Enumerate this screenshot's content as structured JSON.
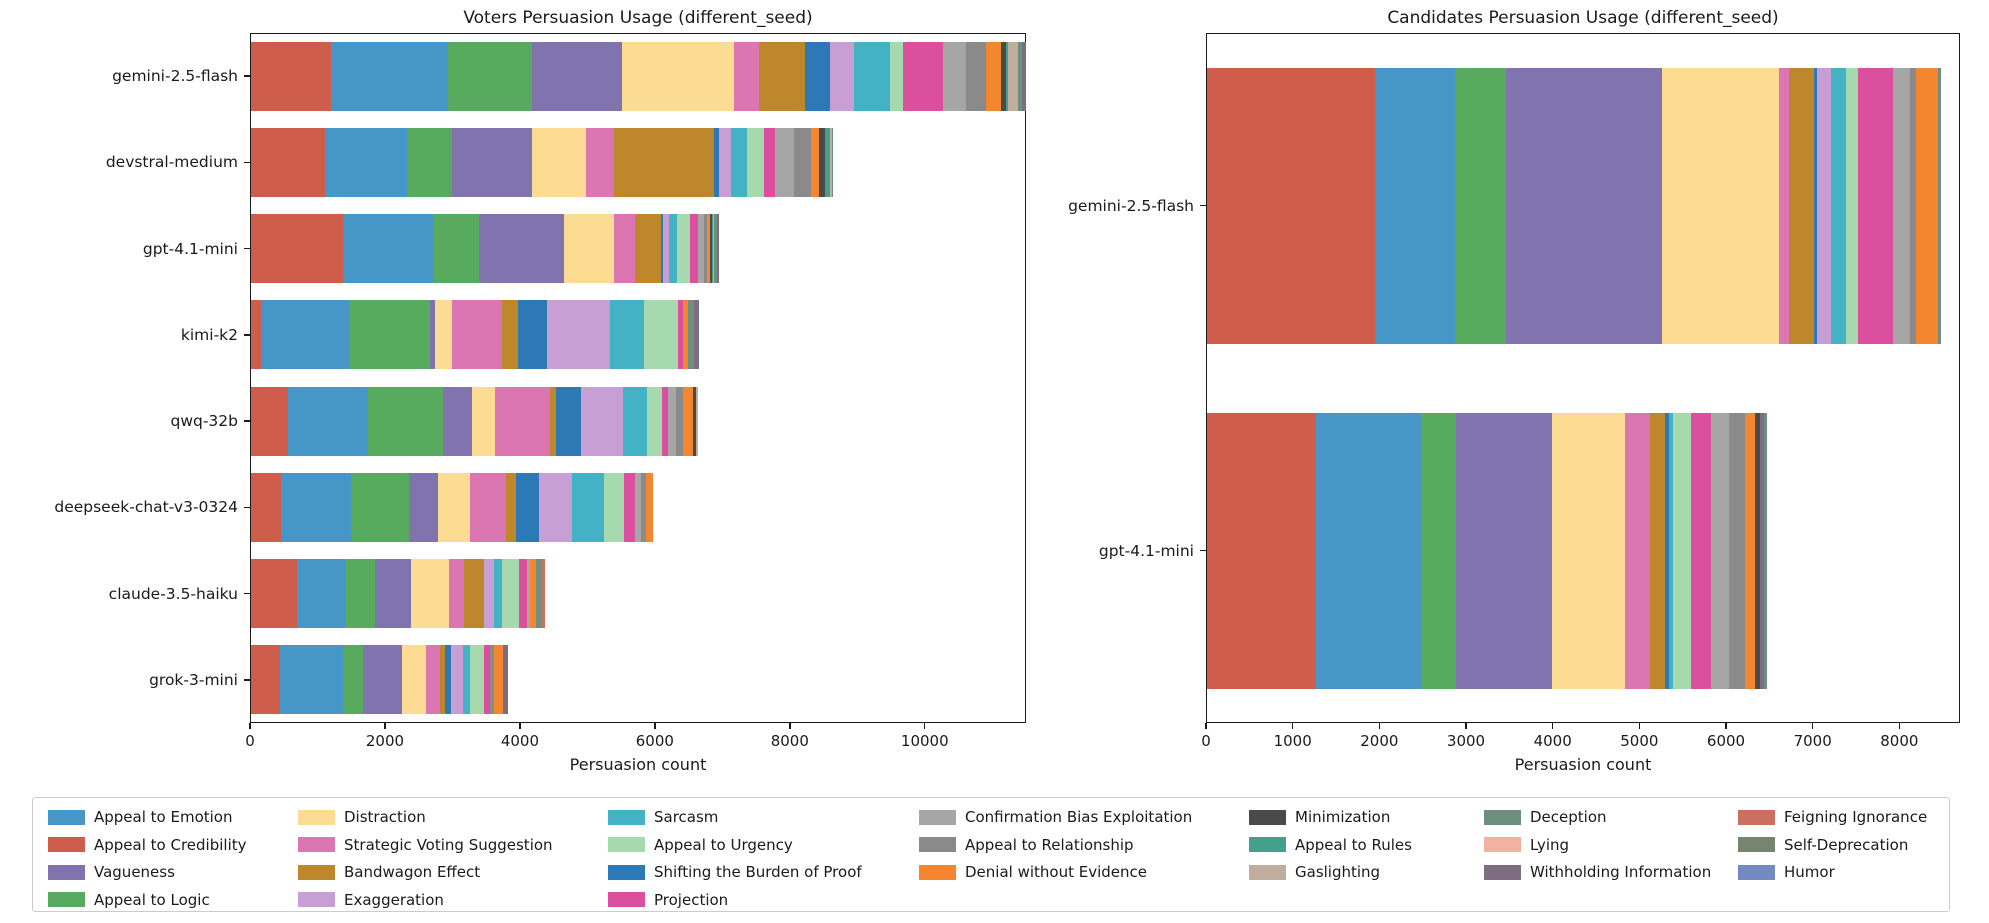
{
  "figure": {
    "background": "#ffffff",
    "text_color": "#1a1a1a"
  },
  "palette": {
    "Appeal to Emotion": "#4796C8",
    "Appeal to Credibility": "#CF5D4C",
    "Vagueness": "#8173AE",
    "Appeal to Logic": "#58AA5F",
    "Distraction": "#FBDC92",
    "Strategic Voting Suggestion": "#DC76B2",
    "Bandwagon Effect": "#BE872B",
    "Exaggeration": "#C89FD4",
    "Sarcasm": "#43B2C4",
    "Appeal to Urgency": "#A6DAAE",
    "Shifting the Burden of Proof": "#2C79B5",
    "Projection": "#DC4F9F",
    "Confirmation Bias Exploitation": "#A6A6A6",
    "Appeal to Relationship": "#8A8A8A",
    "Denial without Evidence": "#F4862F",
    "Minimization": "#4A4A48",
    "Appeal to Rules": "#42A08D",
    "Gaslighting": "#BFAD9D",
    "Deception": "#6E8F7F",
    "Lying": "#F2B2A2",
    "Withholding Information": "#7E6D80",
    "Feigning Ignorance": "#C97061",
    "Self-Deprecation": "#768570",
    "Humor": "#7289C1"
  },
  "chart_data": [
    {
      "type": "bar",
      "orientation": "horizontal",
      "stacked": true,
      "title": "Voters Persuasion Usage (different_seed)",
      "xlabel": "Persuasion count",
      "xlim": [
        0,
        11500
      ],
      "xticks": [
        0,
        2000,
        4000,
        6000,
        8000,
        10000
      ],
      "categories": [
        "gemini-2.5-flash",
        "devstral-medium",
        "gpt-4.1-mini",
        "kimi-k2",
        "qwq-32b",
        "deepseek-chat-v3-0324",
        "claude-3.5-haiku",
        "grok-3-mini"
      ],
      "bars": [
        {
          "label": "gemini-2.5-flash",
          "segments": [
            [
              "Appeal to Credibility",
              1180
            ],
            [
              "Appeal to Emotion",
              1730
            ],
            [
              "Appeal to Logic",
              1250
            ],
            [
              "Vagueness",
              1330
            ],
            [
              "Distraction",
              1660
            ],
            [
              "Strategic Voting Suggestion",
              380
            ],
            [
              "Bandwagon Effect",
              670
            ],
            [
              "Shifting the Burden of Proof",
              380
            ],
            [
              "Exaggeration",
              350
            ],
            [
              "Sarcasm",
              540
            ],
            [
              "Appeal to Urgency",
              185
            ],
            [
              "Projection",
              600
            ],
            [
              "Confirmation Bias Exploitation",
              330
            ],
            [
              "Appeal to Relationship",
              300
            ],
            [
              "Denial without Evidence",
              220
            ],
            [
              "Minimization",
              75
            ],
            [
              "Appeal to Rules",
              30
            ],
            [
              "Gaslighting",
              150
            ],
            [
              "Deception",
              60
            ],
            [
              "Withholding Information",
              60
            ]
          ]
        },
        {
          "label": "devstral-medium",
          "segments": [
            [
              "Appeal to Credibility",
              1090
            ],
            [
              "Appeal to Emotion",
              1215
            ],
            [
              "Appeal to Logic",
              665
            ],
            [
              "Vagueness",
              1195
            ],
            [
              "Distraction",
              790
            ],
            [
              "Strategic Voting Suggestion",
              415
            ],
            [
              "Bandwagon Effect",
              1490
            ],
            [
              "Shifting the Burden of Proof",
              75
            ],
            [
              "Exaggeration",
              170
            ],
            [
              "Sarcasm",
              235
            ],
            [
              "Appeal to Urgency",
              260
            ],
            [
              "Projection",
              160
            ],
            [
              "Confirmation Bias Exploitation",
              280
            ],
            [
              "Appeal to Relationship",
              260
            ],
            [
              "Denial without Evidence",
              110
            ],
            [
              "Minimization",
              90
            ],
            [
              "Appeal to Rules",
              80
            ],
            [
              "Gaslighting",
              20
            ],
            [
              "Deception",
              20
            ]
          ]
        },
        {
          "label": "gpt-4.1-mini",
          "segments": [
            [
              "Appeal to Credibility",
              1360
            ],
            [
              "Appeal to Emotion",
              1330
            ],
            [
              "Appeal to Logic",
              690
            ],
            [
              "Vagueness",
              1250
            ],
            [
              "Distraction",
              740
            ],
            [
              "Strategic Voting Suggestion",
              310
            ],
            [
              "Bandwagon Effect",
              390
            ],
            [
              "Shifting the Burden of Proof",
              30
            ],
            [
              "Exaggeration",
              90
            ],
            [
              "Sarcasm",
              125
            ],
            [
              "Appeal to Urgency",
              185
            ],
            [
              "Projection",
              125
            ],
            [
              "Confirmation Bias Exploitation",
              80
            ],
            [
              "Appeal to Relationship",
              55
            ],
            [
              "Denial without Evidence",
              40
            ],
            [
              "Minimization",
              25
            ],
            [
              "Appeal to Rules",
              20
            ],
            [
              "Gaslighting",
              15
            ],
            [
              "Deception",
              40
            ],
            [
              "Withholding Information",
              30
            ]
          ]
        },
        {
          "label": "kimi-k2",
          "segments": [
            [
              "Appeal to Credibility",
              135
            ],
            [
              "Appeal to Emotion",
              1305
            ],
            [
              "Appeal to Logic",
              1200
            ],
            [
              "Vagueness",
              75
            ],
            [
              "Distraction",
              260
            ],
            [
              "Strategic Voting Suggestion",
              735
            ],
            [
              "Bandwagon Effect",
              235
            ],
            [
              "Shifting the Burden of Proof",
              430
            ],
            [
              "Exaggeration",
              935
            ],
            [
              "Sarcasm",
              515
            ],
            [
              "Appeal to Urgency",
              500
            ],
            [
              "Projection",
              75
            ],
            [
              "Denial without Evidence",
              75
            ],
            [
              "Deception",
              90
            ],
            [
              "Withholding Information",
              75
            ]
          ]
        },
        {
          "label": "qwq-32b",
          "segments": [
            [
              "Appeal to Credibility",
              540
            ],
            [
              "Appeal to Emotion",
              1195
            ],
            [
              "Appeal to Logic",
              1105
            ],
            [
              "Vagueness",
              425
            ],
            [
              "Distraction",
              345
            ],
            [
              "Strategic Voting Suggestion",
              810
            ],
            [
              "Bandwagon Effect",
              90
            ],
            [
              "Shifting the Burden of Proof",
              370
            ],
            [
              "Exaggeration",
              635
            ],
            [
              "Sarcasm",
              345
            ],
            [
              "Appeal to Urgency",
              220
            ],
            [
              "Projection",
              95
            ],
            [
              "Confirmation Bias Exploitation",
              120
            ],
            [
              "Appeal to Relationship",
              100
            ],
            [
              "Denial without Evidence",
              145
            ],
            [
              "Minimization",
              50
            ],
            [
              "Gaslighting",
              35
            ]
          ]
        },
        {
          "label": "deepseek-chat-v3-0324",
          "segments": [
            [
              "Appeal to Credibility",
              440
            ],
            [
              "Appeal to Emotion",
              1030
            ],
            [
              "Appeal to Logic",
              870
            ],
            [
              "Vagueness",
              420
            ],
            [
              "Distraction",
              480
            ],
            [
              "Strategic Voting Suggestion",
              530
            ],
            [
              "Bandwagon Effect",
              145
            ],
            [
              "Shifting the Burden of Proof",
              355
            ],
            [
              "Exaggeration",
              480
            ],
            [
              "Sarcasm",
              480
            ],
            [
              "Appeal to Urgency",
              295
            ],
            [
              "Projection",
              160
            ],
            [
              "Confirmation Bias Exploitation",
              95
            ],
            [
              "Appeal to Relationship",
              75
            ],
            [
              "Denial without Evidence",
              95
            ]
          ]
        },
        {
          "label": "claude-3.5-haiku",
          "segments": [
            [
              "Appeal to Credibility",
              680
            ],
            [
              "Appeal to Emotion",
              720
            ],
            [
              "Appeal to Logic",
              425
            ],
            [
              "Vagueness",
              545
            ],
            [
              "Distraction",
              560
            ],
            [
              "Strategic Voting Suggestion",
              220
            ],
            [
              "Bandwagon Effect",
              295
            ],
            [
              "Exaggeration",
              145
            ],
            [
              "Sarcasm",
              125
            ],
            [
              "Appeal to Urgency",
              245
            ],
            [
              "Projection",
              125
            ],
            [
              "Confirmation Bias Exploitation",
              50
            ],
            [
              "Denial without Evidence",
              90
            ],
            [
              "Deception",
              75
            ],
            [
              "Feigning Ignorance",
              60
            ]
          ]
        },
        {
          "label": "grok-3-mini",
          "segments": [
            [
              "Appeal to Credibility",
              430
            ],
            [
              "Appeal to Emotion",
              935
            ],
            [
              "Appeal to Logic",
              295
            ],
            [
              "Vagueness",
              565
            ],
            [
              "Distraction",
              370
            ],
            [
              "Strategic Voting Suggestion",
              205
            ],
            [
              "Bandwagon Effect",
              75
            ],
            [
              "Shifting the Burden of Proof",
              90
            ],
            [
              "Exaggeration",
              170
            ],
            [
              "Sarcasm",
              110
            ],
            [
              "Appeal to Urgency",
              205
            ],
            [
              "Projection",
              90
            ],
            [
              "Appeal to Relationship",
              60
            ],
            [
              "Denial without Evidence",
              125
            ],
            [
              "Withholding Information",
              75
            ]
          ]
        }
      ]
    },
    {
      "type": "bar",
      "orientation": "horizontal",
      "stacked": true,
      "title": "Candidates Persuasion Usage (different_seed)",
      "xlabel": "Persuasion count",
      "xlim": [
        0,
        8700
      ],
      "xticks": [
        0,
        1000,
        2000,
        3000,
        4000,
        5000,
        6000,
        7000,
        8000
      ],
      "categories": [
        "gemini-2.5-flash",
        "gpt-4.1-mini"
      ],
      "bars": [
        {
          "label": "gemini-2.5-flash",
          "segments": [
            [
              "Appeal to Credibility",
              1930
            ],
            [
              "Appeal to Emotion",
              925
            ],
            [
              "Appeal to Logic",
              595
            ],
            [
              "Vagueness",
              1795
            ],
            [
              "Distraction",
              1345
            ],
            [
              "Strategic Voting Suggestion",
              125
            ],
            [
              "Bandwagon Effect",
              290
            ],
            [
              "Shifting the Burden of Proof",
              35
            ],
            [
              "Exaggeration",
              155
            ],
            [
              "Sarcasm",
              175
            ],
            [
              "Appeal to Urgency",
              140
            ],
            [
              "Projection",
              405
            ],
            [
              "Confirmation Bias Exploitation",
              190
            ],
            [
              "Appeal to Relationship",
              75
            ],
            [
              "Denial without Evidence",
              255
            ],
            [
              "Deception",
              30
            ]
          ]
        },
        {
          "label": "gpt-4.1-mini",
          "segments": [
            [
              "Appeal to Credibility",
              1250
            ],
            [
              "Appeal to Emotion",
              1210
            ],
            [
              "Appeal to Logic",
              410
            ],
            [
              "Vagueness",
              1110
            ],
            [
              "Distraction",
              840
            ],
            [
              "Strategic Voting Suggestion",
              290
            ],
            [
              "Bandwagon Effect",
              175
            ],
            [
              "Shifting the Burden of Proof",
              40
            ],
            [
              "Sarcasm",
              45
            ],
            [
              "Appeal to Urgency",
              215
            ],
            [
              "Projection",
              230
            ],
            [
              "Confirmation Bias Exploitation",
              200
            ],
            [
              "Appeal to Relationship",
              195
            ],
            [
              "Denial without Evidence",
              115
            ],
            [
              "Minimization",
              50
            ],
            [
              "Withholding Information",
              50
            ],
            [
              "Deception",
              35
            ]
          ]
        }
      ]
    }
  ],
  "legend": {
    "columns": [
      [
        "Appeal to Emotion",
        "Appeal to Credibility",
        "Vagueness",
        "Appeal to Logic"
      ],
      [
        "Distraction",
        "Strategic Voting Suggestion",
        "Bandwagon Effect",
        "Exaggeration"
      ],
      [
        "Sarcasm",
        "Appeal to Urgency",
        "Shifting the Burden of Proof",
        "Projection"
      ],
      [
        "Confirmation Bias Exploitation",
        "Appeal to Relationship",
        "Denial without Evidence"
      ],
      [
        "Minimization",
        "Appeal to Rules",
        "Gaslighting"
      ],
      [
        "Deception",
        "Lying",
        "Withholding Information"
      ],
      [
        "Feigning Ignorance",
        "Self-Deprecation",
        "Humor"
      ]
    ]
  }
}
